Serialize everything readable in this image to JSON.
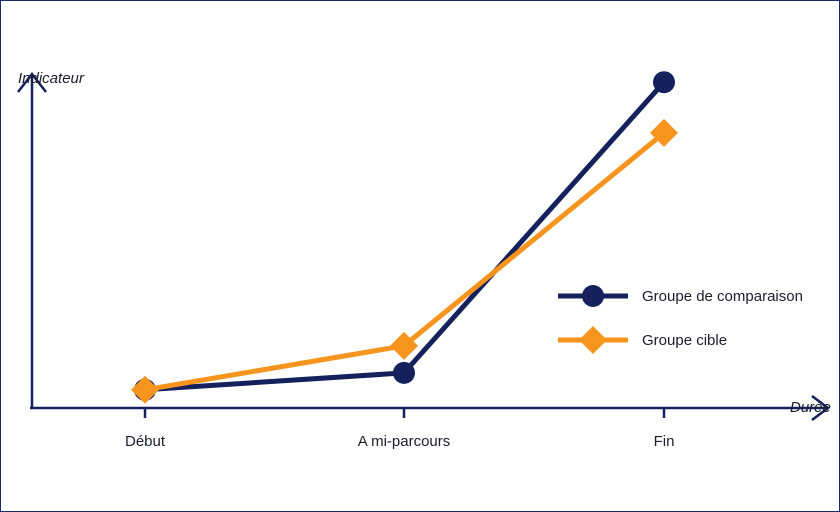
{
  "chart_data": {
    "type": "line",
    "title": "",
    "xlabel": "Durée",
    "ylabel": "Indicateur",
    "categories": [
      "Début",
      "A mi-parcours",
      "Fin"
    ],
    "ylim": [
      0,
      100
    ],
    "grid": false,
    "legend_position": "right",
    "y_ticks_shown": false,
    "series": [
      {
        "name": "Groupe de comparaison",
        "values": [
          9,
          14,
          100
        ],
        "color": "#14215c",
        "marker": "circle"
      },
      {
        "name": "Groupe cible",
        "values": [
          9,
          22,
          85
        ],
        "color": "#f7941d",
        "marker": "diamond"
      }
    ]
  }
}
